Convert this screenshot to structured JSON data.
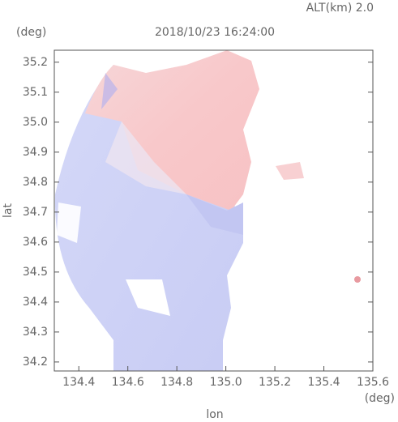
{
  "chart_data": {
    "type": "map",
    "title": "2018/10/23 16:24:00",
    "subtitle": "ALT(km) 2.0",
    "y_unit": "(deg)",
    "x_unit": "(deg)",
    "xlabel": "lon",
    "ylabel": "lat",
    "xlim": [
      134.3,
      135.6
    ],
    "ylim": [
      34.17,
      35.24
    ],
    "xticks": [
      134.4,
      134.6,
      134.8,
      {
        "value": 135.0,
        "label": "135.0"
      },
      135.2,
      135.4,
      135.6
    ],
    "yticks": [
      34.2,
      34.3,
      34.4,
      34.5,
      34.6,
      34.7,
      34.8,
      34.9,
      {
        "value": 35.0,
        "label": "35.0"
      },
      35.1,
      35.2
    ]
  }
}
